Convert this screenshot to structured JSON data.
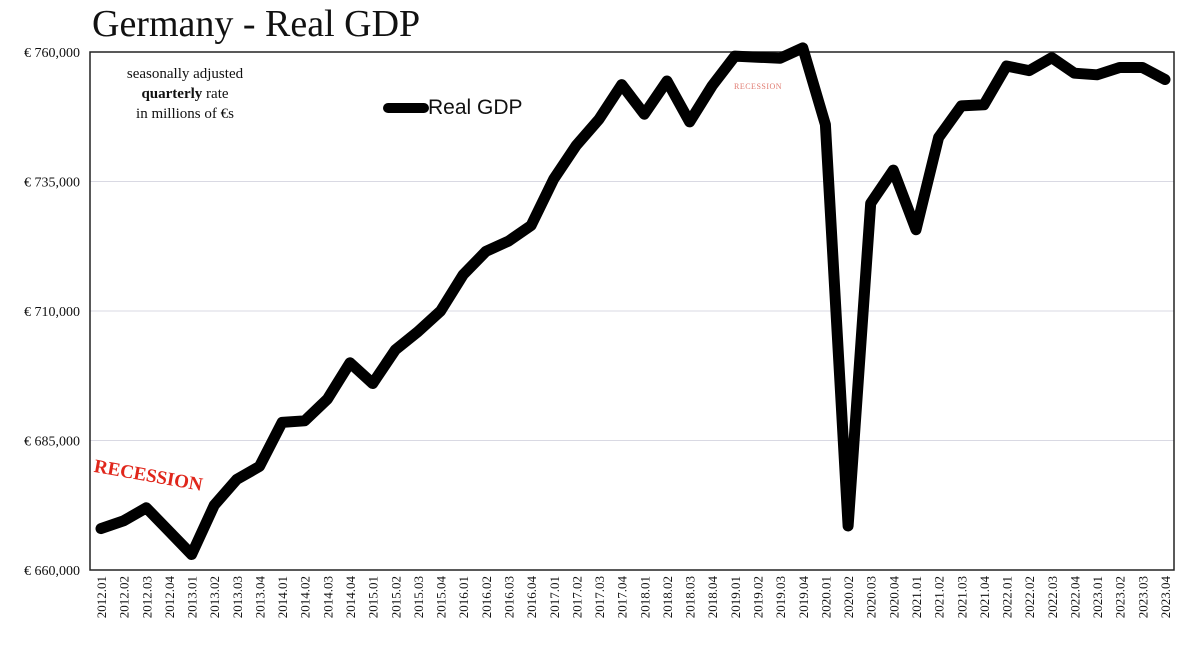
{
  "chart_data": {
    "type": "line",
    "title": "Germany - Real GDP",
    "notes": {
      "line1": "seasonally adjusted",
      "line2_bold": "quarterly",
      "line2_rest": " rate",
      "line3": "in millions of €s"
    },
    "legend": [
      {
        "name": "Real GDP",
        "color": "#000000"
      }
    ],
    "annotations": [
      "RECESSION",
      "RECESSION"
    ],
    "ylim": [
      660000,
      760000
    ],
    "yticks": [
      760000,
      735000,
      710000,
      685000,
      660000
    ],
    "ytick_labels": [
      "€ 760,000",
      "€ 735,000",
      "€ 710,000",
      "€ 685,000",
      "€ 660,000"
    ],
    "grid": true,
    "categories": [
      "2012.01",
      "2012.02",
      "2012.03",
      "2012.04",
      "2013.01",
      "2013.02",
      "2013.03",
      "2013.04",
      "2014.01",
      "2014.02",
      "2014.03",
      "2014.04",
      "2015.01",
      "2015.02",
      "2015.03",
      "2015.04",
      "2016.01",
      "2016.02",
      "2016.03",
      "2016.04",
      "2017.01",
      "2017.02",
      "2017.03",
      "2017.04",
      "2018.01",
      "2018.02",
      "2018.03",
      "2018.04",
      "2019.01",
      "2019.02",
      "2019.03",
      "2019.04",
      "2020.01",
      "2020.02",
      "2020.03",
      "2020.04",
      "2021.01",
      "2021.02",
      "2021.03",
      "2021.04",
      "2022.01",
      "2022.02",
      "2022.03",
      "2022.04",
      "2023.01",
      "2023.02",
      "2023.03",
      "2023.04"
    ],
    "series": [
      {
        "name": "Real GDP",
        "values": [
          668000,
          669500,
          672000,
          667500,
          663000,
          672500,
          677500,
          680000,
          688500,
          688800,
          693000,
          700000,
          696000,
          702500,
          706000,
          710000,
          717000,
          721500,
          723500,
          726500,
          735500,
          742000,
          747000,
          753700,
          748000,
          754400,
          746500,
          753500,
          759200,
          759000,
          758800,
          760800,
          746000,
          668500,
          730800,
          737200,
          725700,
          743500,
          749600,
          749800,
          757300,
          756400,
          758900,
          755900,
          755600,
          757000,
          757000,
          754700
        ]
      }
    ]
  }
}
